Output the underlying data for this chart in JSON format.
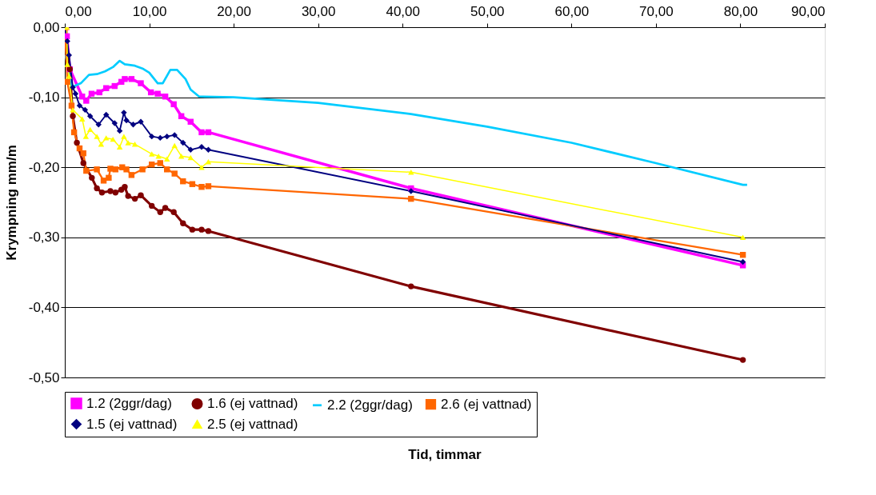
{
  "chart_data": {
    "type": "line",
    "xlabel": "Tid, timmar",
    "ylabel": "Krympning mm/m",
    "xlim": [
      0,
      90
    ],
    "ylim": [
      -0.5,
      0
    ],
    "xticks": [
      {
        "value": 0,
        "label": "0,00"
      },
      {
        "value": 10,
        "label": "10,00"
      },
      {
        "value": 20,
        "label": "20,00"
      },
      {
        "value": 30,
        "label": "30,00"
      },
      {
        "value": 40,
        "label": "40,00"
      },
      {
        "value": 50,
        "label": "50,00"
      },
      {
        "value": 60,
        "label": "60,00"
      },
      {
        "value": 70,
        "label": "70,00"
      },
      {
        "value": 80,
        "label": "80,00"
      },
      {
        "value": 90,
        "label": "90,00"
      }
    ],
    "yticks": [
      {
        "value": -0.5,
        "label": "-0,50"
      },
      {
        "value": -0.4,
        "label": "-0,40"
      },
      {
        "value": -0.3,
        "label": "-0,30"
      },
      {
        "value": -0.2,
        "label": "-0,20"
      },
      {
        "value": -0.1,
        "label": "-0,10"
      },
      {
        "value": 0,
        "label": "0,00"
      }
    ],
    "grid": "y",
    "legend": "bottom",
    "series": [
      {
        "name": "1.2 (2ggr/dag)",
        "color": "#ff00ff",
        "marker": "square",
        "x": [
          0.16,
          0.25,
          0.6,
          2.06,
          2.54,
          3.17,
          4.1,
          4.9,
          5.9,
          6.7,
          7.1,
          7.9,
          9.0,
          10.2,
          11.0,
          11.9,
          12.9,
          13.8,
          14.9,
          16.2,
          17.0,
          41.0,
          80.3
        ],
        "values": [
          0.0,
          -0.013,
          -0.06,
          -0.099,
          -0.105,
          -0.095,
          -0.093,
          -0.087,
          -0.084,
          -0.078,
          -0.074,
          -0.074,
          -0.08,
          -0.093,
          -0.095,
          -0.099,
          -0.11,
          -0.127,
          -0.135,
          -0.15,
          -0.15,
          -0.23,
          -0.34
        ]
      },
      {
        "name": "1.6 (ej vattnad)",
        "color": "#800000",
        "marker": "circle",
        "x": [
          0,
          0.6,
          0.95,
          1.43,
          2.2,
          3.2,
          3.8,
          4.4,
          5.4,
          6.0,
          6.7,
          7.1,
          7.5,
          8.3,
          9.0,
          10.3,
          11.3,
          11.9,
          12.9,
          14.0,
          15.1,
          16.2,
          17.0,
          41.0,
          80.3
        ],
        "values": [
          0.0,
          -0.06,
          -0.127,
          -0.165,
          -0.194,
          -0.215,
          -0.23,
          -0.236,
          -0.234,
          -0.236,
          -0.232,
          -0.228,
          -0.241,
          -0.245,
          -0.24,
          -0.255,
          -0.264,
          -0.258,
          -0.264,
          -0.28,
          -0.289,
          -0.289,
          -0.291,
          -0.37,
          -0.475
        ]
      },
      {
        "name": "2.2 (2ggr/dag)",
        "color": "#00ccff",
        "marker": "none",
        "x": [
          0,
          0.16,
          0.8,
          1.9,
          2.86,
          3.8,
          4.76,
          5.7,
          6.5,
          7.1,
          8.3,
          9.2,
          10.0,
          11.0,
          11.6,
          12.5,
          13.3,
          14.3,
          14.9,
          15.9,
          20,
          30,
          41,
          50,
          60,
          70,
          80.3,
          80.8
        ],
        "values": [
          -0.04,
          -0.044,
          -0.086,
          -0.08,
          -0.068,
          -0.067,
          -0.063,
          -0.057,
          -0.048,
          -0.053,
          -0.055,
          -0.059,
          -0.065,
          -0.08,
          -0.08,
          -0.061,
          -0.061,
          -0.074,
          -0.089,
          -0.099,
          -0.1,
          -0.108,
          -0.124,
          -0.142,
          -0.165,
          -0.194,
          -0.225,
          -0.225
        ]
      },
      {
        "name": "2.6 (ej vattnad)",
        "color": "#ff6600",
        "marker": "square",
        "x": [
          0,
          0.3,
          0.8,
          1.1,
          1.75,
          2.2,
          2.54,
          3.8,
          4.6,
          5.2,
          5.4,
          6.0,
          6.8,
          7.3,
          7.9,
          9.2,
          10.3,
          11.3,
          12.1,
          13.0,
          14.0,
          15.1,
          16.2,
          17.0,
          41.0,
          80.3
        ],
        "values": [
          0.0,
          -0.078,
          -0.112,
          -0.15,
          -0.173,
          -0.18,
          -0.205,
          -0.203,
          -0.219,
          -0.215,
          -0.202,
          -0.203,
          -0.2,
          -0.203,
          -0.211,
          -0.203,
          -0.196,
          -0.194,
          -0.203,
          -0.209,
          -0.22,
          -0.224,
          -0.228,
          -0.227,
          -0.245,
          -0.325
        ]
      },
      {
        "name": "1.5 (ej vattnad)",
        "color": "#000080",
        "marker": "diamond",
        "x": [
          0,
          0.3,
          0.5,
          0.95,
          1.27,
          1.75,
          2.4,
          3.0,
          4.0,
          4.9,
          5.9,
          6.5,
          7.0,
          7.3,
          8.1,
          9.0,
          10.3,
          11.3,
          12.1,
          13.0,
          14.0,
          14.9,
          16.2,
          17.0,
          41.0,
          80.3
        ],
        "values": [
          0.0,
          -0.02,
          -0.04,
          -0.086,
          -0.095,
          -0.112,
          -0.118,
          -0.127,
          -0.139,
          -0.125,
          -0.137,
          -0.148,
          -0.122,
          -0.133,
          -0.139,
          -0.135,
          -0.156,
          -0.158,
          -0.156,
          -0.154,
          -0.165,
          -0.175,
          -0.171,
          -0.175,
          -0.234,
          -0.335
        ]
      },
      {
        "name": "2.5 (ej vattnad)",
        "color": "#ffff00",
        "marker": "triangle",
        "x": [
          0.25,
          0.3,
          0.5,
          0.95,
          2.06,
          2.5,
          3.0,
          3.8,
          4.3,
          4.9,
          5.7,
          6.5,
          7.0,
          7.5,
          8.3,
          10.3,
          11.1,
          12.1,
          13.0,
          13.8,
          14.9,
          16.2,
          17.0,
          41.0,
          80.3
        ],
        "values": [
          0.0,
          -0.053,
          -0.07,
          -0.118,
          -0.131,
          -0.156,
          -0.146,
          -0.156,
          -0.167,
          -0.158,
          -0.16,
          -0.171,
          -0.156,
          -0.165,
          -0.167,
          -0.181,
          -0.184,
          -0.188,
          -0.169,
          -0.184,
          -0.186,
          -0.2,
          -0.192,
          -0.207,
          -0.3
        ]
      }
    ]
  }
}
